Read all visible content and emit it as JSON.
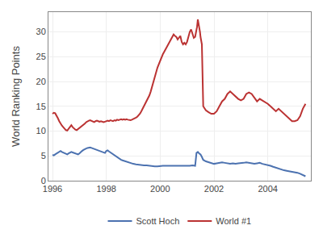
{
  "chart_data": {
    "type": "line",
    "ylabel": "World Ranking Points",
    "xlim": [
      1995.85,
      2005.6
    ],
    "ylim": [
      0,
      34
    ],
    "xticks": [
      1996,
      1998,
      2000,
      2002,
      2004
    ],
    "yticks": [
      0,
      5,
      10,
      15,
      20,
      25,
      30
    ],
    "grid": true,
    "legend": "bottom",
    "series": [
      {
        "name": "Scott Hoch",
        "color": "#4c72b0",
        "x": [
          1996.0,
          1996.05,
          1996.1,
          1996.15,
          1996.2,
          1996.25,
          1996.3,
          1996.35,
          1996.4,
          1996.45,
          1996.5,
          1996.55,
          1996.6,
          1996.65,
          1996.7,
          1996.75,
          1996.8,
          1996.85,
          1996.9,
          1996.95,
          1997.0,
          1997.05,
          1997.1,
          1997.15,
          1997.2,
          1997.25,
          1997.3,
          1997.35,
          1997.4,
          1997.45,
          1997.5,
          1997.55,
          1997.6,
          1997.65,
          1997.7,
          1997.75,
          1997.8,
          1997.85,
          1997.9,
          1997.95,
          1998.0,
          1998.05,
          1998.1,
          1998.15,
          1998.2,
          1998.25,
          1998.3,
          1998.35,
          1998.4,
          1998.45,
          1998.5,
          1998.55,
          1998.6,
          1998.65,
          1998.7,
          1998.75,
          1998.8,
          1998.85,
          1998.9,
          1998.95,
          1999.0,
          1999.1,
          1999.2,
          1999.3,
          1999.4,
          1999.5,
          1999.6,
          1999.7,
          1999.8,
          1999.9,
          2000.0,
          2000.1,
          2000.2,
          2000.3,
          2000.4,
          2000.5,
          2000.6,
          2000.7,
          2000.8,
          2000.9,
          2001.0,
          2001.1,
          2001.2,
          2001.3,
          2001.35,
          2001.4,
          2001.45,
          2001.5,
          2001.55,
          2001.6,
          2001.7,
          2001.8,
          2001.9,
          2002.0,
          2002.1,
          2002.2,
          2002.3,
          2002.4,
          2002.5,
          2002.6,
          2002.7,
          2002.8,
          2002.9,
          2003.0,
          2003.1,
          2003.2,
          2003.3,
          2003.4,
          2003.5,
          2003.6,
          2003.7,
          2003.8,
          2003.9,
          2004.0,
          2004.1,
          2004.2,
          2004.3,
          2004.4,
          2004.5,
          2004.6,
          2004.7,
          2004.8,
          2004.9,
          2005.0,
          2005.1,
          2005.2,
          2005.3,
          2005.4
        ],
        "values": [
          5.2,
          5.1,
          5.3,
          5.5,
          5.6,
          5.9,
          6.0,
          5.8,
          5.7,
          5.5,
          5.4,
          5.3,
          5.5,
          5.6,
          5.8,
          5.7,
          5.6,
          5.5,
          5.4,
          5.3,
          5.5,
          5.8,
          6.0,
          6.2,
          6.4,
          6.5,
          6.6,
          6.7,
          6.7,
          6.6,
          6.5,
          6.4,
          6.3,
          6.2,
          6.1,
          6.0,
          5.9,
          5.8,
          5.7,
          5.6,
          6.0,
          6.1,
          5.9,
          5.7,
          5.5,
          5.3,
          5.1,
          4.9,
          4.7,
          4.5,
          4.3,
          4.2,
          4.1,
          4.0,
          3.9,
          3.8,
          3.7,
          3.6,
          3.5,
          3.4,
          3.4,
          3.3,
          3.2,
          3.2,
          3.1,
          3.1,
          3.0,
          3.0,
          2.9,
          2.9,
          3.0,
          3.0,
          3.0,
          3.0,
          2.9,
          2.9,
          2.9,
          2.9,
          2.9,
          2.9,
          3.0,
          3.0,
          3.1,
          3.0,
          5.6,
          5.8,
          5.5,
          5.3,
          4.8,
          4.2,
          3.9,
          3.7,
          3.5,
          3.4,
          3.5,
          3.6,
          3.7,
          3.6,
          3.5,
          3.4,
          3.5,
          3.4,
          3.5,
          3.5,
          3.6,
          3.7,
          3.6,
          3.5,
          3.4,
          3.5,
          3.6,
          3.4,
          3.3,
          3.2,
          3.0,
          2.8,
          2.6,
          2.4,
          2.2,
          2.1,
          2.0,
          1.9,
          1.8,
          1.8,
          1.6,
          1.4,
          1.2,
          0.9
        ]
      },
      {
        "name": "World #1",
        "color": "#bb3333",
        "x": [
          1996.0,
          1996.05,
          1996.1,
          1996.15,
          1996.2,
          1996.25,
          1996.3,
          1996.35,
          1996.4,
          1996.45,
          1996.5,
          1996.55,
          1996.6,
          1996.65,
          1996.7,
          1996.75,
          1996.8,
          1996.85,
          1996.9,
          1996.95,
          1997.0,
          1997.05,
          1997.1,
          1997.15,
          1997.2,
          1997.25,
          1997.3,
          1997.35,
          1997.4,
          1997.45,
          1997.5,
          1997.55,
          1997.6,
          1997.65,
          1997.7,
          1997.75,
          1997.8,
          1997.85,
          1997.9,
          1997.95,
          1998.0,
          1998.05,
          1998.1,
          1998.15,
          1998.2,
          1998.25,
          1998.3,
          1998.35,
          1998.4,
          1998.45,
          1998.5,
          1998.55,
          1998.6,
          1998.65,
          1998.7,
          1998.75,
          1998.8,
          1998.85,
          1998.9,
          1998.95,
          1999.0,
          1999.05,
          1999.1,
          1999.15,
          1999.2,
          1999.25,
          1999.3,
          1999.35,
          1999.4,
          1999.45,
          1999.5,
          1999.55,
          1999.6,
          1999.65,
          1999.7,
          1999.75,
          1999.8,
          1999.85,
          1999.9,
          1999.95,
          2000.0,
          2000.05,
          2000.1,
          2000.15,
          2000.2,
          2000.25,
          2000.3,
          2000.35,
          2000.4,
          2000.45,
          2000.5,
          2000.55,
          2000.6,
          2000.65,
          2000.7,
          2000.75,
          2000.8,
          2000.85,
          2000.9,
          2000.95,
          2001.0,
          2001.05,
          2001.1,
          2001.15,
          2001.2,
          2001.25,
          2001.3,
          2001.32,
          2001.35,
          2001.37,
          2001.4,
          2001.42,
          2001.45,
          2001.48,
          2001.5,
          2001.55,
          2001.6,
          2001.7,
          2001.8,
          2001.9,
          2002.0,
          2002.1,
          2002.2,
          2002.3,
          2002.4,
          2002.5,
          2002.6,
          2002.7,
          2002.8,
          2002.9,
          2003.0,
          2003.1,
          2003.2,
          2003.3,
          2003.4,
          2003.5,
          2003.6,
          2003.7,
          2003.8,
          2003.9,
          2004.0,
          2004.1,
          2004.2,
          2004.3,
          2004.4,
          2004.5,
          2004.6,
          2004.7,
          2004.8,
          2004.9,
          2005.0,
          2005.1,
          2005.2,
          2005.3,
          2005.4
        ],
        "values": [
          13.5,
          13.7,
          13.6,
          13.2,
          12.6,
          12.0,
          11.5,
          11.1,
          10.8,
          10.5,
          10.2,
          10.1,
          10.5,
          11.0,
          11.2,
          10.8,
          10.5,
          10.3,
          10.2,
          10.4,
          10.6,
          10.8,
          11.0,
          11.3,
          11.5,
          11.8,
          12.0,
          12.1,
          12.2,
          12.1,
          12.0,
          11.8,
          12.0,
          12.1,
          12.0,
          11.9,
          12.0,
          11.9,
          11.8,
          11.9,
          12.0,
          12.1,
          12.0,
          12.2,
          12.1,
          12.0,
          12.2,
          12.1,
          12.3,
          12.2,
          12.3,
          12.4,
          12.3,
          12.4,
          12.3,
          12.4,
          12.3,
          12.2,
          12.2,
          12.3,
          12.4,
          12.5,
          12.7,
          12.9,
          13.2,
          13.5,
          14.0,
          14.5,
          15.0,
          15.5,
          16.0,
          16.5,
          17.2,
          18.0,
          19.0,
          20.0,
          21.0,
          22.0,
          22.8,
          23.5,
          24.2,
          25.0,
          25.5,
          26.0,
          26.5,
          27.0,
          27.5,
          27.8,
          28.5,
          29.0,
          29.5,
          29.2,
          29.0,
          28.5,
          28.8,
          29.2,
          28.0,
          27.5,
          27.8,
          27.5,
          28.0,
          29.0,
          30.0,
          30.5,
          29.5,
          28.8,
          29.0,
          29.5,
          30.0,
          31.0,
          32.5,
          32.0,
          31.0,
          30.0,
          29.0,
          27.5,
          15.0,
          14.2,
          13.8,
          13.5,
          13.5,
          14.0,
          15.0,
          16.0,
          16.5,
          17.5,
          18.0,
          17.5,
          17.0,
          16.5,
          16.2,
          16.5,
          17.5,
          17.8,
          17.5,
          16.8,
          16.0,
          16.5,
          16.2,
          15.8,
          15.5,
          15.0,
          14.5,
          14.0,
          14.5,
          14.0,
          13.5,
          13.0,
          12.5,
          12.0,
          12.0,
          12.2,
          13.0,
          14.5,
          15.5
        ]
      }
    ]
  }
}
